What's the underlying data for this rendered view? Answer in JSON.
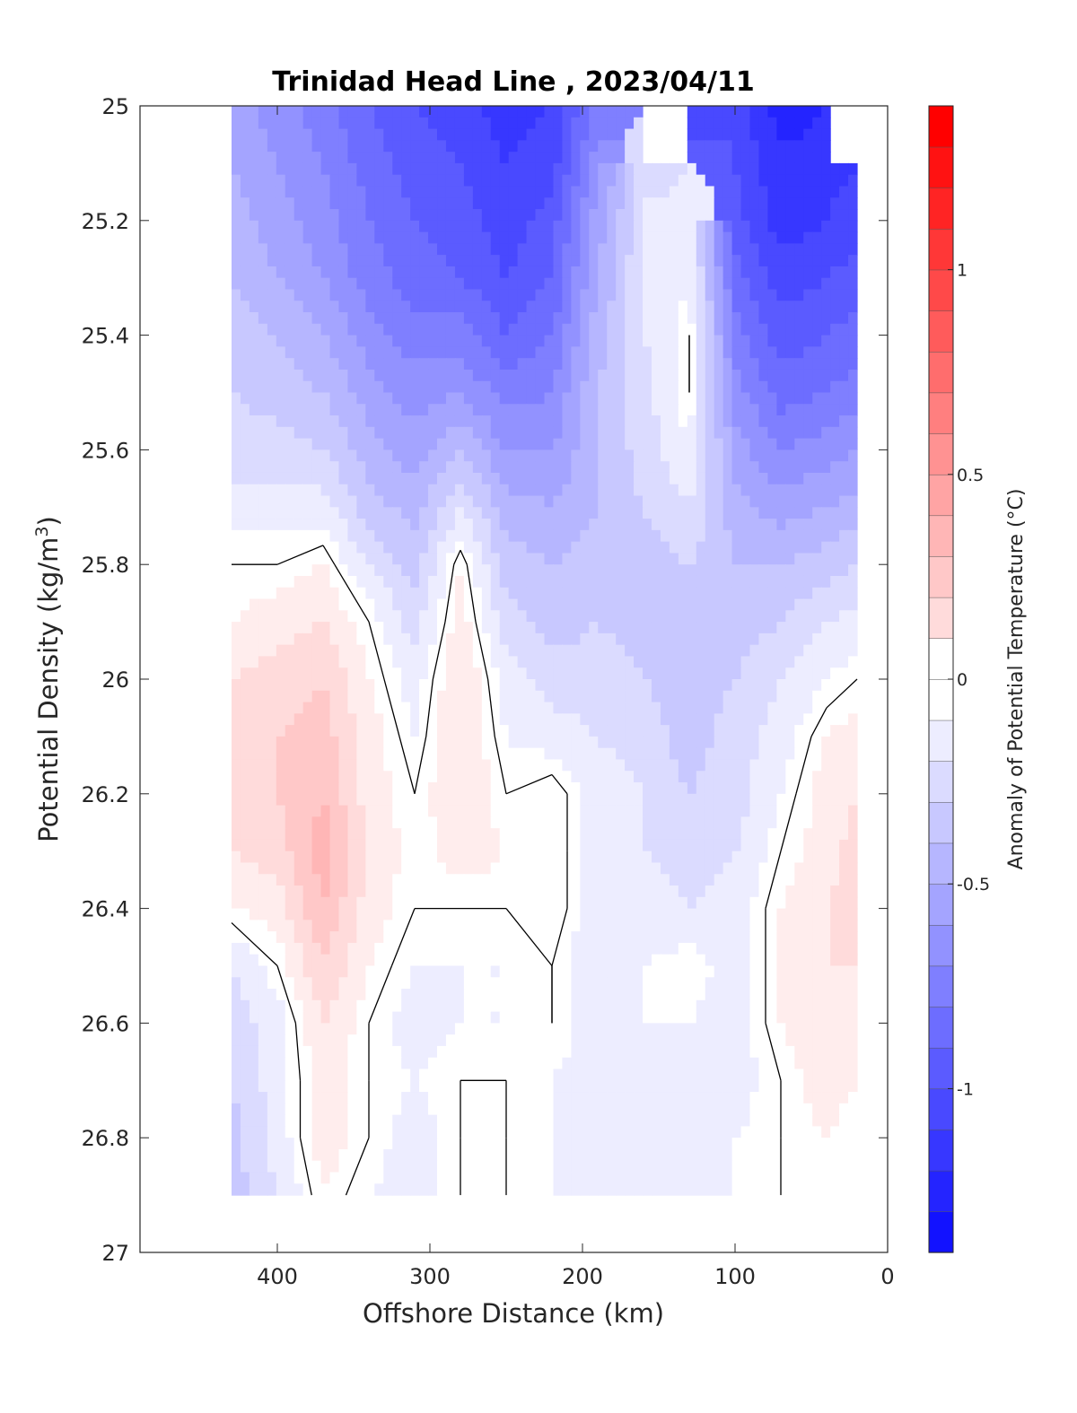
{
  "chart_data": {
    "type": "heatmap",
    "title": "Trinidad Head Line , 2023/04/11",
    "xlabel": "Offshore Distance (km)",
    "ylabel": "Potential Density (kg/m",
    "ylabel_superscript": "3",
    "ylabel_suffix": ")",
    "colorbar_label": "Anomaly of Potential Temperature (°C)",
    "xlim": [
      490,
      0
    ],
    "ylim": [
      25,
      27
    ],
    "x_reversed": true,
    "y_reversed": true,
    "xticks": [
      400,
      300,
      200,
      100,
      0
    ],
    "yticks": [
      25,
      25.2,
      25.4,
      25.6,
      25.8,
      26,
      26.2,
      26.4,
      26.6,
      26.8,
      27
    ],
    "ytick_labels": [
      "25",
      "25.2",
      "25.4",
      "25.6",
      "25.8",
      "26",
      "26.2",
      "26.4",
      "26.6",
      "26.8",
      "27"
    ],
    "colorbar": {
      "range": [
        -1.4,
        1.4
      ],
      "step": 0.1,
      "ticks": [
        -1,
        -0.5,
        0,
        0.5,
        1
      ],
      "colormap": "blue-white-red",
      "cold_color": "#0000ff",
      "neutral_color": "#ffffff",
      "warm_color": "#ff0000"
    },
    "contour_line_level": 0,
    "contour_line_color": "#000000",
    "x": [
      430,
      400,
      370,
      340,
      310,
      280,
      250,
      220,
      190,
      160,
      130,
      100,
      70,
      40,
      20
    ],
    "y": [
      25.0,
      25.1,
      25.2,
      25.3,
      25.4,
      25.5,
      25.6,
      25.7,
      25.8,
      25.9,
      26.0,
      26.1,
      26.2,
      26.3,
      26.4,
      26.5,
      26.6,
      26.7,
      26.8,
      26.9
    ],
    "z": [
      [
        -0.5,
        -0.6,
        -0.7,
        -0.85,
        -0.95,
        -1.0,
        -1.1,
        -1.05,
        -0.7,
        null,
        null,
        -1.0,
        -1.2,
        null,
        null
      ],
      [
        -0.45,
        -0.55,
        -0.65,
        -0.8,
        -0.9,
        -0.95,
        -1.05,
        -1.0,
        -0.6,
        -0.2,
        null,
        -0.95,
        -1.15,
        -1.1,
        null
      ],
      [
        -0.4,
        -0.5,
        -0.6,
        -0.75,
        -0.85,
        -0.9,
        -1.0,
        -0.9,
        -0.5,
        -0.15,
        -0.1,
        -0.9,
        -1.1,
        -1.05,
        -1.0
      ],
      [
        -0.35,
        -0.45,
        -0.55,
        -0.7,
        -0.8,
        -0.85,
        -0.95,
        -0.85,
        -0.45,
        -0.15,
        -0.05,
        -0.8,
        -1.0,
        -0.95,
        -0.9
      ],
      [
        -0.3,
        -0.35,
        -0.45,
        -0.6,
        -0.7,
        -0.7,
        -0.85,
        -0.75,
        -0.4,
        -0.15,
        0.0,
        -0.7,
        -0.9,
        -0.85,
        -0.8
      ],
      [
        -0.25,
        -0.3,
        -0.35,
        -0.5,
        -0.6,
        -0.55,
        -0.7,
        -0.65,
        -0.35,
        -0.2,
        0.0,
        -0.6,
        -0.8,
        -0.75,
        -0.7
      ],
      [
        -0.2,
        -0.2,
        -0.25,
        -0.4,
        -0.5,
        -0.35,
        -0.55,
        -0.55,
        -0.35,
        -0.2,
        -0.05,
        -0.5,
        -0.65,
        -0.6,
        -0.55
      ],
      [
        -0.1,
        -0.1,
        -0.1,
        -0.3,
        -0.4,
        -0.15,
        -0.4,
        -0.45,
        -0.35,
        -0.25,
        -0.15,
        -0.4,
        -0.5,
        -0.45,
        -0.4
      ],
      [
        0.0,
        0.0,
        0.05,
        -0.15,
        -0.3,
        0.05,
        -0.3,
        -0.35,
        -0.3,
        -0.3,
        -0.25,
        -0.35,
        -0.35,
        -0.3,
        -0.25
      ],
      [
        0.05,
        0.1,
        0.15,
        0.0,
        -0.2,
        0.1,
        -0.2,
        -0.3,
        -0.25,
        -0.3,
        -0.3,
        -0.3,
        -0.25,
        -0.15,
        -0.1
      ],
      [
        0.15,
        0.2,
        0.25,
        0.05,
        -0.1,
        0.15,
        -0.1,
        -0.2,
        -0.2,
        -0.25,
        -0.3,
        -0.25,
        -0.15,
        -0.05,
        0.0
      ],
      [
        0.2,
        0.25,
        0.3,
        0.1,
        -0.05,
        0.15,
        -0.05,
        -0.1,
        -0.15,
        -0.2,
        -0.3,
        -0.2,
        -0.1,
        0.05,
        0.1
      ],
      [
        0.2,
        0.25,
        0.35,
        0.1,
        0.0,
        0.15,
        0.0,
        0.05,
        -0.1,
        -0.15,
        -0.25,
        -0.2,
        -0.05,
        0.1,
        0.15
      ],
      [
        0.15,
        0.2,
        0.4,
        0.15,
        0.0,
        0.1,
        0.05,
        0.05,
        -0.1,
        -0.15,
        -0.2,
        -0.15,
        0.0,
        0.1,
        0.2
      ],
      [
        0.05,
        0.1,
        0.35,
        0.1,
        0.0,
        0.0,
        0.0,
        0.05,
        -0.1,
        -0.1,
        -0.15,
        -0.1,
        0.05,
        0.15,
        0.2
      ],
      [
        -0.15,
        0.0,
        0.25,
        0.05,
        -0.05,
        -0.05,
        -0.05,
        0.0,
        -0.15,
        -0.05,
        0.0,
        -0.1,
        0.05,
        0.15,
        0.15
      ],
      [
        -0.2,
        -0.1,
        0.15,
        0.0,
        -0.1,
        -0.05,
        -0.05,
        0.0,
        -0.1,
        -0.05,
        -0.05,
        -0.1,
        0.05,
        0.15,
        0.1
      ],
      [
        -0.25,
        -0.1,
        0.1,
        0.0,
        -0.05,
        0.0,
        0.0,
        -0.05,
        -0.1,
        -0.1,
        -0.1,
        -0.1,
        0.0,
        0.1,
        0.05
      ],
      [
        -0.3,
        -0.1,
        0.1,
        0.0,
        -0.1,
        0.0,
        0.0,
        -0.05,
        -0.1,
        -0.1,
        -0.1,
        -0.05,
        0.0,
        0.05,
        0.0
      ],
      [
        -0.3,
        -0.15,
        0.05,
        -0.05,
        -0.1,
        0.0,
        0.0,
        -0.05,
        -0.1,
        -0.1,
        -0.1,
        -0.05,
        0.0,
        0.0,
        0.0
      ]
    ]
  }
}
